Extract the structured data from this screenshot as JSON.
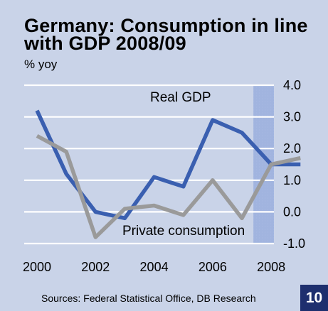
{
  "page": {
    "title": "Germany: Consumption in line with GDP 2008/09",
    "unit_label": "% yoy",
    "source": "Sources: Federal Statistical Office, DB Research",
    "page_number": "10"
  },
  "chart_data": {
    "type": "line",
    "title": "Germany: Consumption in line with GDP 2008/09",
    "ylabel": "% yoy",
    "xlabel": "",
    "x": [
      2000,
      2001,
      2002,
      2003,
      2004,
      2005,
      2006,
      2007,
      2008,
      2009
    ],
    "xticks": [
      "2000",
      "2002",
      "2004",
      "2006",
      "2008"
    ],
    "yticks": [
      "4.0",
      "3.0",
      "2.0",
      "1.0",
      "0.0",
      "-1.0"
    ],
    "ylim": [
      -1.0,
      4.0
    ],
    "grid": true,
    "forecast_shading_from": 2008,
    "series": [
      {
        "name": "Real GDP",
        "color": "#3a5fb0",
        "values": [
          3.2,
          1.2,
          0.0,
          -0.2,
          1.1,
          0.8,
          2.9,
          2.5,
          1.5,
          1.5
        ]
      },
      {
        "name": "Private consumption",
        "color": "#9a9a9a",
        "values": [
          2.4,
          1.9,
          -0.8,
          0.1,
          0.2,
          -0.1,
          1.0,
          -0.2,
          1.5,
          1.7
        ]
      }
    ]
  }
}
